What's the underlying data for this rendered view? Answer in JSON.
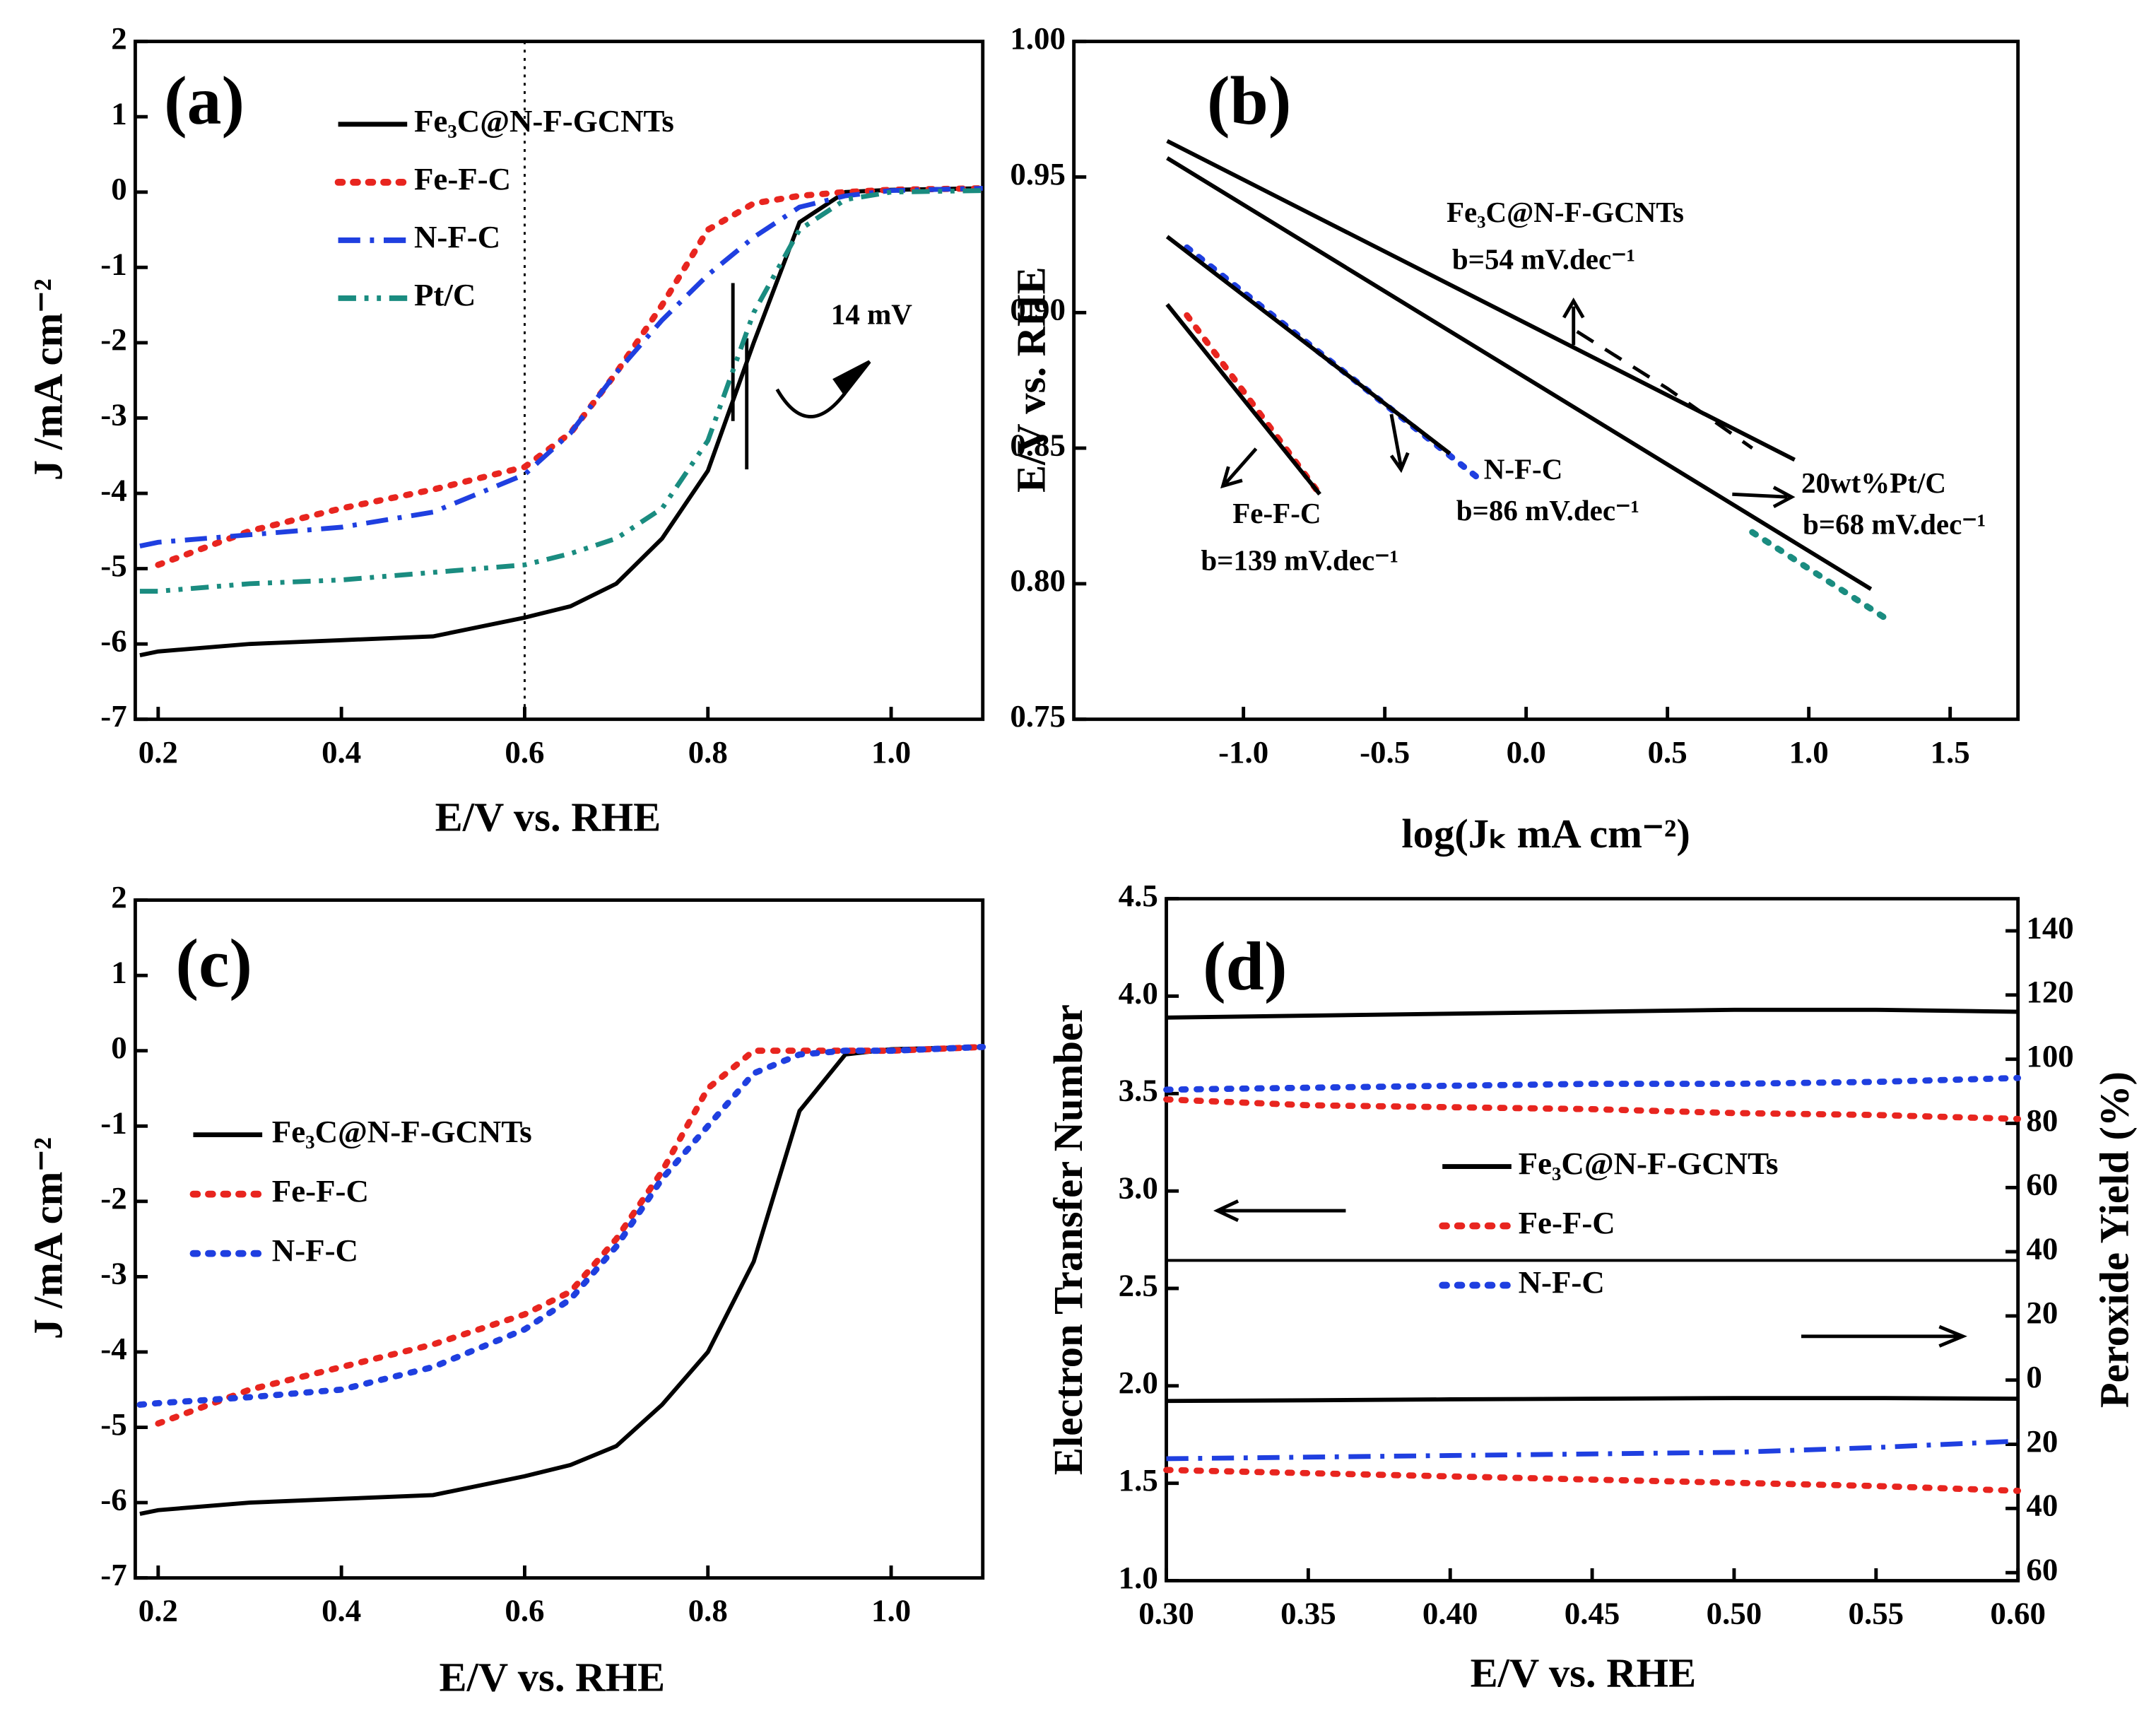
{
  "chart_data": [
    {
      "type": "line",
      "panel_label": "(a)",
      "x_label": "E/V vs. RHE",
      "y_label": "J /mA cm⁻²",
      "x": [
        0.18,
        0.2,
        0.3,
        0.4,
        0.5,
        0.6,
        0.65,
        0.7,
        0.75,
        0.8,
        0.85,
        0.9,
        0.95,
        1.0,
        1.1
      ],
      "xlim": [
        0.175,
        1.1
      ],
      "ylim": [
        -7,
        2
      ],
      "xticks": [
        0.2,
        0.4,
        0.6,
        0.8,
        {
          "value": 1.0,
          "label": "1.0"
        }
      ],
      "yticks": [
        2,
        1,
        0,
        -1,
        -2,
        -3,
        -4,
        -5,
        -6,
        -7
      ],
      "vline": 0.6,
      "annotations": [
        "14 mV"
      ],
      "series": [
        {
          "name": "Fe₃C@N-F-GCNTs",
          "color": "#000000",
          "style": "solid",
          "values": [
            -6.15,
            -6.1,
            -6.0,
            -5.95,
            -5.9,
            -5.65,
            -5.5,
            -5.2,
            -4.6,
            -3.7,
            -2.0,
            -0.4,
            0.0,
            0.03,
            0.05
          ]
        },
        {
          "name": "Fe-F-C",
          "color": "#e8251f",
          "style": "dotted",
          "values": [
            null,
            -4.95,
            -4.5,
            -4.2,
            -3.95,
            -3.65,
            -3.2,
            -2.4,
            -1.5,
            -0.5,
            -0.15,
            -0.05,
            0.0,
            0.03,
            0.05
          ]
        },
        {
          "name": "N-F-C",
          "color": "#1f3fe0",
          "style": "dashdot",
          "values": [
            -4.7,
            -4.65,
            -4.55,
            -4.45,
            -4.25,
            -3.75,
            -3.2,
            -2.4,
            -1.7,
            -1.1,
            -0.6,
            -0.2,
            -0.05,
            0.02,
            0.05
          ]
        },
        {
          "name": "Pt/C",
          "color": "#1a8c80",
          "style": "dashdotdot",
          "values": [
            -5.3,
            -5.3,
            -5.2,
            -5.15,
            -5.05,
            -4.95,
            -4.8,
            -4.6,
            -4.2,
            -3.3,
            -1.6,
            -0.5,
            -0.1,
            0.0,
            0.02
          ]
        }
      ]
    },
    {
      "type": "line",
      "panel_label": "(b)",
      "x_label": "log(Jₖ mA cm⁻²)",
      "y_label": "E/V vs. RHE",
      "xlim": [
        -1.6,
        1.74
      ],
      "ylim": [
        0.75,
        1.0
      ],
      "xticks": [
        {
          "value": -1.0,
          "label": "-1.0"
        },
        -0.5,
        {
          "value": 0.0,
          "label": "0.0"
        },
        0.5,
        {
          "value": 1.0,
          "label": "1.0"
        },
        1.5
      ],
      "yticks": [
        0.75,
        {
          "value": 0.8,
          "label": "0.80"
        },
        0.85,
        {
          "value": 0.9,
          "label": "0.90"
        },
        0.95,
        {
          "value": 1.0,
          "label": "1.00"
        }
      ],
      "annotations": [
        "Fe₃C@N-F-GCNTs",
        "b=54 mV.dec⁻¹",
        "N-F-C",
        "b=86 mV.dec⁻¹",
        "Fe-F-C",
        "b=139 mV.dec⁻¹",
        "20wt%Pt/C",
        "b=68 mV.dec⁻¹"
      ],
      "series": [
        {
          "color": "#000000",
          "style": "dashed",
          "x": [
            0.18,
            0.5,
            0.8
          ],
          "values": [
            0.893,
            0.872,
            0.85
          ]
        },
        {
          "color": "#000000",
          "style": "solid",
          "x": [
            -1.27,
            0.95
          ],
          "values": [
            0.9633,
            0.8457
          ]
        },
        {
          "color": "#1a8c80",
          "style": "dotted",
          "x": [
            0.8,
            1.29
          ],
          "values": [
            0.819,
            0.786
          ]
        },
        {
          "color": "#000000",
          "style": "solid",
          "x": [
            -1.27,
            1.22
          ],
          "values": [
            0.957,
            0.798
          ]
        },
        {
          "color": "#1f3fe0",
          "style": "dotted",
          "x": [
            -1.2,
            -0.17
          ],
          "values": [
            0.924,
            0.839
          ]
        },
        {
          "color": "#000000",
          "style": "solid",
          "x": [
            -1.27,
            -0.27
          ],
          "values": [
            0.928,
            0.848
          ]
        },
        {
          "color": "#e8251f",
          "style": "dotted",
          "x": [
            -1.2,
            -0.73
          ],
          "values": [
            0.899,
            0.833
          ]
        },
        {
          "color": "#000000",
          "style": "solid",
          "x": [
            -1.27,
            -0.73
          ],
          "values": [
            0.903,
            0.833
          ]
        }
      ]
    },
    {
      "type": "line",
      "panel_label": "(c)",
      "x_label": "E/V vs. RHE",
      "y_label": "J /mA cm⁻²",
      "x": [
        0.18,
        0.2,
        0.3,
        0.4,
        0.5,
        0.6,
        0.65,
        0.7,
        0.75,
        0.8,
        0.85,
        0.9,
        0.95,
        1.0,
        1.1
      ],
      "xlim": [
        0.175,
        1.1
      ],
      "ylim": [
        -7,
        2
      ],
      "xticks": [
        0.2,
        0.4,
        0.6,
        0.8,
        {
          "value": 1.0,
          "label": "1.0"
        }
      ],
      "yticks": [
        2,
        1,
        0,
        -1,
        -2,
        -3,
        -4,
        -5,
        -6,
        -7
      ],
      "series": [
        {
          "name": "Fe₃C@N-F-GCNTs",
          "color": "#000000",
          "style": "solid",
          "values": [
            -6.15,
            -6.1,
            -6.0,
            -5.95,
            -5.9,
            -5.65,
            -5.5,
            -5.25,
            -4.7,
            -4.0,
            -2.8,
            -0.8,
            -0.05,
            0.02,
            0.05
          ]
        },
        {
          "name": "Fe-F-C",
          "color": "#e8251f",
          "style": "dotted",
          "values": [
            null,
            -4.95,
            -4.5,
            -4.2,
            -3.9,
            -3.5,
            -3.2,
            -2.5,
            -1.6,
            -0.5,
            0.0,
            0.0,
            0.0,
            0.0,
            0.05
          ]
        },
        {
          "name": "N-F-C",
          "color": "#1f3fe0",
          "style": "dotted",
          "values": [
            -4.7,
            -4.68,
            -4.6,
            -4.5,
            -4.2,
            -3.7,
            -3.3,
            -2.6,
            -1.7,
            -1.0,
            -0.3,
            -0.05,
            0.0,
            0.0,
            0.05
          ]
        }
      ]
    },
    {
      "type": "line",
      "panel_label": "(d)",
      "x_label": "E/V vs. RHE",
      "y_label": "Electron Transfer Number",
      "y2_label": "Peroxide Yield (%)",
      "x": [
        0.3,
        0.35,
        0.4,
        0.45,
        0.5,
        0.55,
        0.6
      ],
      "xlim": [
        0.3,
        0.6
      ],
      "ylim": [
        1.0,
        4.5
      ],
      "y2lim": [
        -62.5,
        150
      ],
      "xticks": [
        {
          "value": 0.3,
          "label": "0.30"
        },
        0.35,
        {
          "value": 0.4,
          "label": "0.40"
        },
        0.45,
        {
          "value": 0.5,
          "label": "0.50"
        },
        0.55,
        {
          "value": 0.6,
          "label": "0.60"
        }
      ],
      "yticks": [
        {
          "value": 1.0,
          "label": "1.0"
        },
        1.5,
        {
          "value": 2.0,
          "label": "2.0"
        },
        2.5,
        {
          "value": 3.0,
          "label": "3.0"
        },
        3.5,
        {
          "value": 4.0,
          "label": "4.0"
        },
        4.5
      ],
      "y2ticks": [
        140,
        120,
        100,
        80,
        60,
        40,
        20,
        0,
        {
          "value": -20,
          "label": "20"
        },
        {
          "value": -40,
          "label": "40"
        },
        {
          "value": -60,
          "label": "60"
        }
      ],
      "series": [
        {
          "name": "Fe₃C@N-F-GCNTs",
          "color": "#000000",
          "style": "solid",
          "values": [
            3.89,
            3.9,
            3.91,
            3.92,
            3.93,
            3.93,
            3.92
          ]
        },
        {
          "name": "Fe-F-C",
          "color": "#e8251f",
          "style": "dotted",
          "values": [
            3.47,
            3.44,
            3.43,
            3.42,
            3.4,
            3.39,
            3.37
          ]
        },
        {
          "name": "N-F-C",
          "color": "#1f3fe0",
          "style": "dotted",
          "values": [
            3.52,
            3.53,
            3.54,
            3.55,
            3.55,
            3.56,
            3.58
          ]
        },
        {
          "color": "#000000",
          "style": "solid",
          "axis": "y2",
          "values": [
            -6.5,
            -6.3,
            -6.0,
            -5.8,
            -5.6,
            -5.6,
            -5.8
          ]
        },
        {
          "color": "#1f3fe0",
          "style": "dashdot",
          "axis": "y2",
          "values": [
            -24.5,
            -24.0,
            -23.5,
            -23.0,
            -22.5,
            -21.0,
            -19.0
          ]
        },
        {
          "color": "#e8251f",
          "style": "dotted",
          "axis": "y2",
          "values": [
            -28.0,
            -29.0,
            -30.0,
            -31.0,
            -32.0,
            -33.0,
            -34.5
          ]
        }
      ]
    }
  ]
}
